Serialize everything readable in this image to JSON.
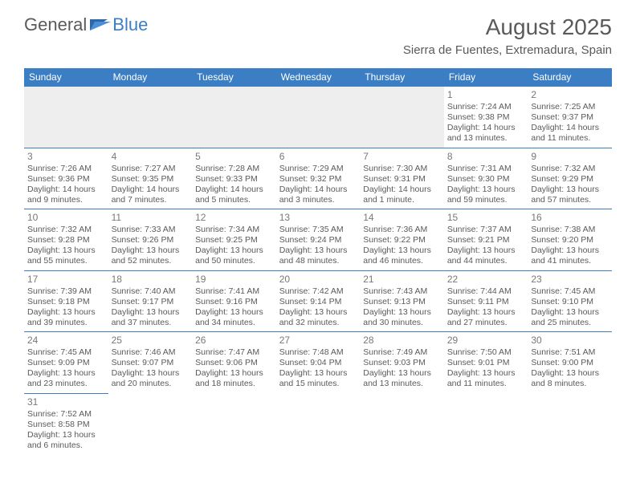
{
  "brand": {
    "part1": "General",
    "part2": "Blue"
  },
  "title": "August 2025",
  "location": "Sierra de Fuentes, Extremadura, Spain",
  "colors": {
    "header_bg": "#3b7ec4",
    "header_fg": "#ffffff",
    "border": "#3b7ec4",
    "text": "#5a5a5a",
    "daynum": "#787878",
    "empty_bg": "#eeeeee"
  },
  "weekdays": [
    "Sunday",
    "Monday",
    "Tuesday",
    "Wednesday",
    "Thursday",
    "Friday",
    "Saturday"
  ],
  "weeks": [
    [
      null,
      null,
      null,
      null,
      null,
      {
        "n": "1",
        "sr": "7:24 AM",
        "ss": "9:38 PM",
        "dl": "14 hours and 13 minutes."
      },
      {
        "n": "2",
        "sr": "7:25 AM",
        "ss": "9:37 PM",
        "dl": "14 hours and 11 minutes."
      }
    ],
    [
      {
        "n": "3",
        "sr": "7:26 AM",
        "ss": "9:36 PM",
        "dl": "14 hours and 9 minutes."
      },
      {
        "n": "4",
        "sr": "7:27 AM",
        "ss": "9:35 PM",
        "dl": "14 hours and 7 minutes."
      },
      {
        "n": "5",
        "sr": "7:28 AM",
        "ss": "9:33 PM",
        "dl": "14 hours and 5 minutes."
      },
      {
        "n": "6",
        "sr": "7:29 AM",
        "ss": "9:32 PM",
        "dl": "14 hours and 3 minutes."
      },
      {
        "n": "7",
        "sr": "7:30 AM",
        "ss": "9:31 PM",
        "dl": "14 hours and 1 minute."
      },
      {
        "n": "8",
        "sr": "7:31 AM",
        "ss": "9:30 PM",
        "dl": "13 hours and 59 minutes."
      },
      {
        "n": "9",
        "sr": "7:32 AM",
        "ss": "9:29 PM",
        "dl": "13 hours and 57 minutes."
      }
    ],
    [
      {
        "n": "10",
        "sr": "7:32 AM",
        "ss": "9:28 PM",
        "dl": "13 hours and 55 minutes."
      },
      {
        "n": "11",
        "sr": "7:33 AM",
        "ss": "9:26 PM",
        "dl": "13 hours and 52 minutes."
      },
      {
        "n": "12",
        "sr": "7:34 AM",
        "ss": "9:25 PM",
        "dl": "13 hours and 50 minutes."
      },
      {
        "n": "13",
        "sr": "7:35 AM",
        "ss": "9:24 PM",
        "dl": "13 hours and 48 minutes."
      },
      {
        "n": "14",
        "sr": "7:36 AM",
        "ss": "9:22 PM",
        "dl": "13 hours and 46 minutes."
      },
      {
        "n": "15",
        "sr": "7:37 AM",
        "ss": "9:21 PM",
        "dl": "13 hours and 44 minutes."
      },
      {
        "n": "16",
        "sr": "7:38 AM",
        "ss": "9:20 PM",
        "dl": "13 hours and 41 minutes."
      }
    ],
    [
      {
        "n": "17",
        "sr": "7:39 AM",
        "ss": "9:18 PM",
        "dl": "13 hours and 39 minutes."
      },
      {
        "n": "18",
        "sr": "7:40 AM",
        "ss": "9:17 PM",
        "dl": "13 hours and 37 minutes."
      },
      {
        "n": "19",
        "sr": "7:41 AM",
        "ss": "9:16 PM",
        "dl": "13 hours and 34 minutes."
      },
      {
        "n": "20",
        "sr": "7:42 AM",
        "ss": "9:14 PM",
        "dl": "13 hours and 32 minutes."
      },
      {
        "n": "21",
        "sr": "7:43 AM",
        "ss": "9:13 PM",
        "dl": "13 hours and 30 minutes."
      },
      {
        "n": "22",
        "sr": "7:44 AM",
        "ss": "9:11 PM",
        "dl": "13 hours and 27 minutes."
      },
      {
        "n": "23",
        "sr": "7:45 AM",
        "ss": "9:10 PM",
        "dl": "13 hours and 25 minutes."
      }
    ],
    [
      {
        "n": "24",
        "sr": "7:45 AM",
        "ss": "9:09 PM",
        "dl": "13 hours and 23 minutes."
      },
      {
        "n": "25",
        "sr": "7:46 AM",
        "ss": "9:07 PM",
        "dl": "13 hours and 20 minutes."
      },
      {
        "n": "26",
        "sr": "7:47 AM",
        "ss": "9:06 PM",
        "dl": "13 hours and 18 minutes."
      },
      {
        "n": "27",
        "sr": "7:48 AM",
        "ss": "9:04 PM",
        "dl": "13 hours and 15 minutes."
      },
      {
        "n": "28",
        "sr": "7:49 AM",
        "ss": "9:03 PM",
        "dl": "13 hours and 13 minutes."
      },
      {
        "n": "29",
        "sr": "7:50 AM",
        "ss": "9:01 PM",
        "dl": "13 hours and 11 minutes."
      },
      {
        "n": "30",
        "sr": "7:51 AM",
        "ss": "9:00 PM",
        "dl": "13 hours and 8 minutes."
      }
    ],
    [
      {
        "n": "31",
        "sr": "7:52 AM",
        "ss": "8:58 PM",
        "dl": "13 hours and 6 minutes."
      },
      null,
      null,
      null,
      null,
      null,
      null
    ]
  ],
  "labels": {
    "sunrise": "Sunrise:",
    "sunset": "Sunset:",
    "daylight": "Daylight:"
  }
}
